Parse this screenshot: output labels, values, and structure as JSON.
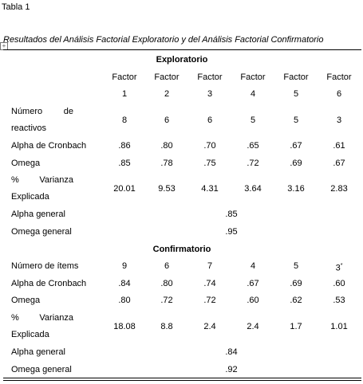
{
  "label": "Tabla 1",
  "caption": "Resultados del Análisis Factorial Exploratorio y del Análisis Factorial Confirmatorio",
  "table": {
    "sections": [
      {
        "title": "Exploratorio",
        "header": [
          "Factor",
          "Factor",
          "Factor",
          "Factor",
          "Factor",
          "Factor"
        ],
        "factor_numbers": [
          "1",
          "2",
          "3",
          "4",
          "5",
          "6"
        ],
        "rows": [
          {
            "label": "Número de reactivos",
            "cells": [
              "8",
              "6",
              "6",
              "5",
              "5",
              "3"
            ]
          },
          {
            "label": "Alpha de Cronbach",
            "cells": [
              ".86",
              ".80",
              ".70",
              ".65",
              ".67",
              ".61"
            ]
          },
          {
            "label": "Omega",
            "cells": [
              ".85",
              ".78",
              ".75",
              ".72",
              ".69",
              ".67"
            ]
          },
          {
            "label": "% Varianza Explicada",
            "cells": [
              "20.01",
              "9.53",
              "4.31",
              "3.64",
              "3.16",
              "2.83"
            ]
          }
        ],
        "general": [
          {
            "label": "Alpha general",
            "value": ".85"
          },
          {
            "label": "Omega general",
            "value": ".95"
          }
        ]
      },
      {
        "title": "Confirmatorio",
        "rows": [
          {
            "label": "Número de ítems",
            "cells": [
              "9",
              "6",
              "7",
              "4",
              "5",
              "3"
            ],
            "note_mark": "*"
          },
          {
            "label": "Alpha de Cronbach",
            "cells": [
              ".84",
              ".80",
              ".74",
              ".67",
              ".69",
              ".60"
            ]
          },
          {
            "label": "Omega",
            "cells": [
              ".80",
              ".72",
              ".72",
              ".60",
              ".62",
              ".53"
            ]
          },
          {
            "label": "% Varianza Explicada",
            "cells": [
              "18.08",
              "8.8",
              "2.4",
              "2.4",
              "1.7",
              "1.01"
            ]
          }
        ],
        "general": [
          {
            "label": "Alpha general",
            "value": ".84"
          },
          {
            "label": "Omega general",
            "value": ".92"
          }
        ]
      }
    ]
  }
}
